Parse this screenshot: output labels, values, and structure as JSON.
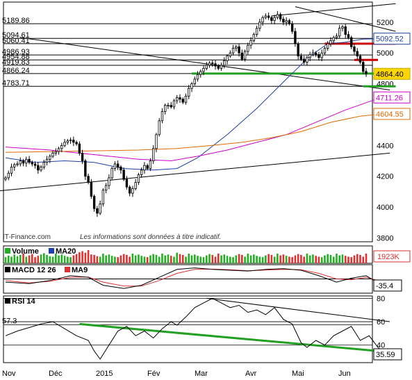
{
  "chart_data": [
    {
      "type": "candlestick",
      "panel": "price",
      "x_labels": [
        "Nov",
        "Déc",
        "2015",
        "Fév",
        "Mar",
        "Avr",
        "Mai",
        "Jun"
      ],
      "y_ticks": [
        3800,
        4000,
        4200,
        4400,
        4600,
        4800,
        5000,
        5200
      ],
      "ylim": [
        3775,
        5330
      ],
      "levels": [
        {
          "label": "5189.86",
          "value": 5189.86
        },
        {
          "label": "5094.61",
          "value": 5094.61
        },
        {
          "label": "5060.41",
          "value": 5060.41
        },
        {
          "label": "4986.93",
          "value": 4986.93
        },
        {
          "label": "4954.88",
          "value": 4954.88
        },
        {
          "label": "4919.83",
          "value": 4919.83
        },
        {
          "label": "4866.24",
          "value": 4866.24
        },
        {
          "label": "4783.71",
          "value": 4783.71
        }
      ],
      "badges": [
        {
          "label": "5092.52",
          "value": 5092.52,
          "color": "#1f3ea8",
          "bg": "#ffffff",
          "border": "#1f3ea8"
        },
        {
          "label": "4864.40",
          "value": 4864.4,
          "color": "#000000",
          "bg": "#ffd700",
          "border": "#c8a800"
        },
        {
          "label": "4711.26",
          "value": 4711.26,
          "color": "#cc00cc",
          "bg": "#ffffff",
          "border": "#cc00cc"
        },
        {
          "label": "4604.55",
          "value": 4604.55,
          "color": "#e06a00",
          "bg": "#ffffff",
          "border": "#e06a00"
        }
      ],
      "closes": [
        4190,
        4220,
        4260,
        4275,
        4280,
        4300,
        4285,
        4310,
        4290,
        4280,
        4270,
        4240,
        4260,
        4290,
        4310,
        4330,
        4350,
        4360,
        4380,
        4400,
        4420,
        4430,
        4435,
        4420,
        4410,
        4350,
        4300,
        4200,
        4160,
        4070,
        3990,
        3960,
        4020,
        4110,
        4140,
        4190,
        4250,
        4280,
        4260,
        4240,
        4180,
        4130,
        4090,
        4120,
        4160,
        4210,
        4240,
        4270,
        4250,
        4300,
        4380,
        4470,
        4560,
        4620,
        4660,
        4660,
        4650,
        4690,
        4710,
        4700,
        4680,
        4720,
        4770,
        4800,
        4830,
        4860,
        4880,
        4900,
        4920,
        4935,
        4930,
        4915,
        4900,
        4920,
        4950,
        4980,
        5000,
        5030,
        5040,
        5000,
        4960,
        5010,
        5050,
        5080,
        5120,
        5160,
        5200,
        5230,
        5240,
        5230,
        5210,
        5230,
        5250,
        5220,
        5200,
        5210,
        5190,
        5140,
        5060,
        4980,
        4960,
        4940,
        4970,
        4990,
        5000,
        4990,
        4970,
        5000,
        5030,
        5060,
        5080,
        5100,
        5110,
        5160,
        5170,
        5120,
        5100,
        5040,
        5010,
        4980,
        4940,
        4880,
        4864.4
      ],
      "ma_series": [
        {
          "name": "MA20",
          "color": "#1f3ea8",
          "values": [
            [
              0,
              4320
            ],
            [
              10,
              4290
            ],
            [
              20,
              4300
            ],
            [
              30,
              4290
            ],
            [
              40,
              4250
            ],
            [
              50,
              4240
            ],
            [
              58,
              4250
            ],
            [
              65,
              4320
            ],
            [
              75,
              4470
            ],
            [
              85,
              4640
            ],
            [
              95,
              4830
            ],
            [
              103,
              4980
            ],
            [
              109,
              5060
            ],
            [
              115,
              5070
            ],
            [
              121,
              5090
            ],
            [
              127,
              5092.52
            ]
          ]
        },
        {
          "name": "MA50",
          "color": "#cc00cc",
          "values": [
            [
              0,
              4390
            ],
            [
              15,
              4370
            ],
            [
              30,
              4340
            ],
            [
              45,
              4310
            ],
            [
              56,
              4300
            ],
            [
              65,
              4330
            ],
            [
              75,
              4370
            ],
            [
              85,
              4420
            ],
            [
              95,
              4470
            ],
            [
              105,
              4550
            ],
            [
              115,
              4630
            ],
            [
              127,
              4711.26
            ]
          ]
        },
        {
          "name": "MA100",
          "color": "#e06a00",
          "values": [
            [
              0,
              4355
            ],
            [
              15,
              4360
            ],
            [
              30,
              4365
            ],
            [
              45,
              4370
            ],
            [
              58,
              4380
            ],
            [
              70,
              4400
            ],
            [
              80,
              4420
            ],
            [
              90,
              4450
            ],
            [
              100,
              4490
            ],
            [
              110,
              4550
            ],
            [
              120,
              4590
            ],
            [
              127,
              4604.55
            ]
          ]
        }
      ],
      "lines": [
        {
          "color": "#000000",
          "from": [
            -5,
            4100
          ],
          "to": [
            130,
            4350
          ]
        },
        {
          "color": "#000000",
          "from": [
            5,
            5100
          ],
          "to": [
            130,
            4760
          ]
        },
        {
          "color": "#000000",
          "from": [
            90,
            5240
          ],
          "to": [
            132,
            5320
          ]
        },
        {
          "color": "#000000",
          "from": [
            98,
            5300
          ],
          "to": [
            132,
            5140
          ]
        },
        {
          "color": "#22a022",
          "from": [
            63,
            4866.24
          ],
          "to": [
            132,
            4866.24
          ]
        },
        {
          "color": "#22a022",
          "from": [
            121,
            4783.71
          ],
          "to": [
            132,
            4783.71
          ]
        },
        {
          "color": "#cc0000",
          "from": [
            108,
            5060.41
          ],
          "to": [
            132,
            5060.41
          ]
        },
        {
          "color": "#cc0000",
          "from": [
            118,
            4954.88
          ],
          "to": [
            126,
            4954.88
          ]
        }
      ],
      "disclaimer": "Les informations sont données à titre indicatif.",
      "source": "IT-Finance.com"
    },
    {
      "type": "bar",
      "panel": "volume",
      "legend": [
        "Volume",
        "MA20"
      ],
      "last_value": "1923K",
      "values": [
        28,
        35,
        30,
        40,
        32,
        38,
        45,
        30,
        36,
        42,
        28,
        34,
        40,
        46,
        38,
        32,
        30,
        44,
        36,
        40,
        34,
        30,
        28,
        36,
        42,
        50,
        55,
        48,
        60,
        40,
        38,
        32,
        30,
        44,
        36,
        40,
        34,
        30,
        28,
        36,
        42,
        38,
        30,
        44,
        36,
        40,
        34,
        30,
        28,
        36,
        42,
        38,
        30,
        44,
        36,
        40,
        34,
        30,
        48,
        42,
        38,
        30,
        44,
        36,
        40,
        34,
        30,
        28,
        36,
        42,
        38,
        30,
        44,
        36,
        40,
        34,
        30,
        28,
        36,
        42,
        38,
        30,
        44,
        36,
        40,
        34,
        30,
        28,
        36,
        42,
        38,
        30,
        44,
        36,
        40,
        34,
        30,
        28,
        36,
        42,
        38,
        30,
        44,
        36,
        40,
        34,
        30,
        28,
        36,
        42,
        38,
        30,
        44,
        36,
        40,
        34,
        30,
        28,
        36,
        42,
        38,
        30,
        44,
        36,
        40,
        34,
        30,
        45
      ]
    },
    {
      "type": "line",
      "panel": "macd",
      "legend": [
        "MACD 12 26",
        "MA9"
      ],
      "last_value": "-35.4",
      "ylim": [
        -90,
        90
      ],
      "macd": [
        [
          0,
          -20
        ],
        [
          8,
          -30
        ],
        [
          15,
          -10
        ],
        [
          22,
          20
        ],
        [
          28,
          10
        ],
        [
          33,
          -40
        ],
        [
          40,
          -60
        ],
        [
          46,
          -40
        ],
        [
          52,
          10
        ],
        [
          58,
          60
        ],
        [
          64,
          70
        ],
        [
          70,
          60
        ],
        [
          76,
          55
        ],
        [
          82,
          50
        ],
        [
          88,
          60
        ],
        [
          94,
          65
        ],
        [
          100,
          55
        ],
        [
          106,
          20
        ],
        [
          112,
          -20
        ],
        [
          117,
          5
        ],
        [
          122,
          20
        ],
        [
          127,
          -35.4
        ]
      ],
      "signal": [
        [
          0,
          -10
        ],
        [
          8,
          -25
        ],
        [
          15,
          -15
        ],
        [
          22,
          10
        ],
        [
          28,
          12
        ],
        [
          33,
          -20
        ],
        [
          40,
          -45
        ],
        [
          46,
          -45
        ],
        [
          52,
          -10
        ],
        [
          58,
          35
        ],
        [
          64,
          60
        ],
        [
          70,
          62
        ],
        [
          76,
          58
        ],
        [
          82,
          52
        ],
        [
          88,
          56
        ],
        [
          94,
          60
        ],
        [
          100,
          58
        ],
        [
          106,
          35
        ],
        [
          112,
          0
        ],
        [
          117,
          -5
        ],
        [
          122,
          10
        ],
        [
          127,
          -15
        ]
      ]
    },
    {
      "type": "line",
      "panel": "rsi",
      "legend": [
        "RSI 14"
      ],
      "left_label": "57.3",
      "last_value": "35.59",
      "ylim": [
        25,
        82
      ],
      "y_ticks": [
        40,
        60,
        80
      ],
      "values": [
        [
          0,
          48
        ],
        [
          4,
          52
        ],
        [
          8,
          55
        ],
        [
          12,
          58
        ],
        [
          16,
          60
        ],
        [
          20,
          54
        ],
        [
          24,
          48
        ],
        [
          28,
          44
        ],
        [
          30,
          35
        ],
        [
          32,
          28
        ],
        [
          35,
          40
        ],
        [
          38,
          52
        ],
        [
          41,
          56
        ],
        [
          44,
          48
        ],
        [
          47,
          52
        ],
        [
          50,
          46
        ],
        [
          53,
          54
        ],
        [
          56,
          60
        ],
        [
          58,
          57
        ],
        [
          61,
          64
        ],
        [
          64,
          72
        ],
        [
          67,
          76
        ],
        [
          70,
          80
        ],
        [
          73,
          76
        ],
        [
          76,
          72
        ],
        [
          79,
          74
        ],
        [
          82,
          68
        ],
        [
          85,
          70
        ],
        [
          88,
          66
        ],
        [
          91,
          72
        ],
        [
          94,
          62
        ],
        [
          97,
          58
        ],
        [
          100,
          42
        ],
        [
          102,
          38
        ],
        [
          105,
          44
        ],
        [
          108,
          40
        ],
        [
          111,
          48
        ],
        [
          114,
          52
        ],
        [
          117,
          56
        ],
        [
          120,
          44
        ],
        [
          123,
          48
        ],
        [
          126,
          38
        ],
        [
          127,
          35.59
        ]
      ],
      "trendlines": [
        {
          "color": "#22a022",
          "from": [
            25,
            58
          ],
          "to": [
            130,
            34
          ]
        },
        {
          "color": "#000000",
          "from": [
            68,
            80
          ],
          "to": [
            130,
            60
          ]
        }
      ]
    }
  ]
}
